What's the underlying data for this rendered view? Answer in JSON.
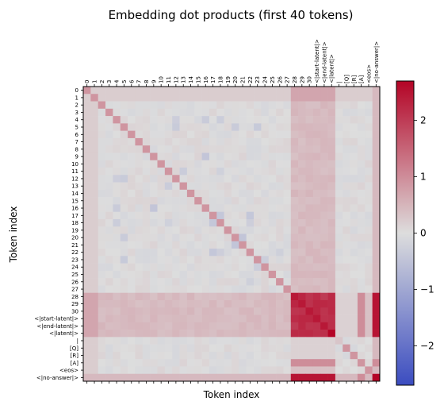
{
  "chart_data": {
    "type": "heatmap",
    "title": "Embedding dot products (first 40 tokens)",
    "xlabel": "Token index",
    "ylabel": "Token index",
    "labels": [
      "0",
      "1",
      "2",
      "3",
      "4",
      "5",
      "6",
      "7",
      "8",
      "9",
      "10",
      "11",
      "12",
      "13",
      "14",
      "15",
      "16",
      "17",
      "18",
      "19",
      "20",
      "21",
      "22",
      "23",
      "24",
      "25",
      "26",
      "27",
      "28",
      "29",
      "30",
      "<|start-latent|>",
      "<|end-latent|>",
      "<|latent|>",
      "|",
      "[Q]",
      "[R]",
      "[A]",
      "<eos>",
      "<|no-answer|>"
    ],
    "colormap": "coolwarm",
    "vmin": -2.7,
    "vmax": 2.7,
    "colorbar_ticks": [
      -2,
      -1,
      0,
      1,
      2
    ],
    "colorbar_tick_labels": [
      "−2",
      "−1",
      "0",
      "1",
      "2"
    ],
    "diagonal_base": 0.55,
    "diagonal_latent_tokens": 2.7,
    "latent_block_value": 2.3,
    "latent_row_col_value": 0.6,
    "answer_tokens_overlap_value": 1.0,
    "background_value": 0.0,
    "colors": {
      "diverging_low": "#3b4cc0",
      "mid": "#dddddd",
      "diverging_high": "#b40426"
    }
  }
}
